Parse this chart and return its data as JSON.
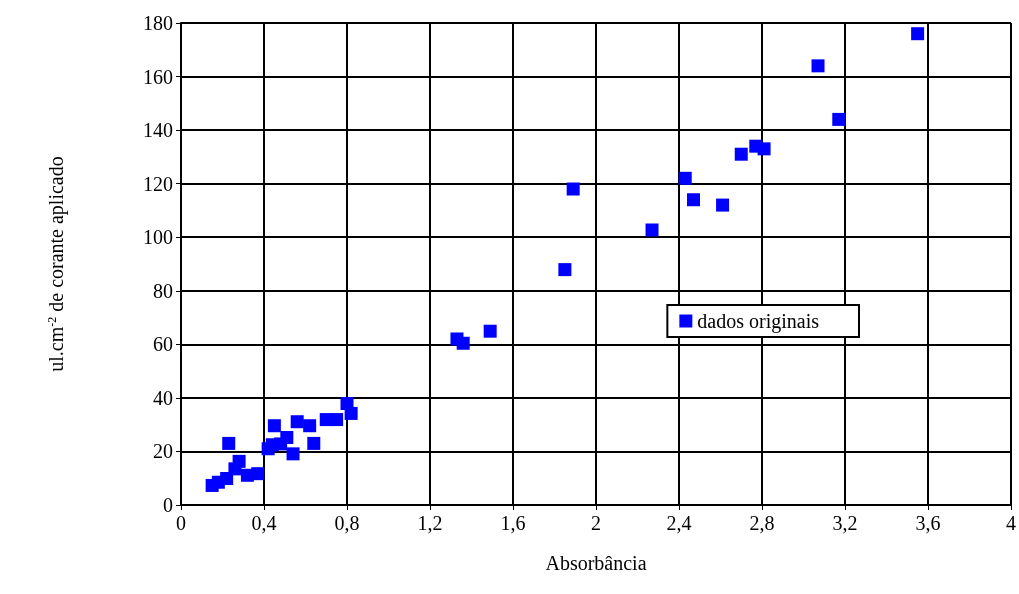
{
  "chart_data": {
    "type": "scatter",
    "xlabel": "Absorbância",
    "ylabel": "ul.cm$^{-2}$ de corante aplicado",
    "series": [
      {
        "name": "dados originais",
        "color": "#0000ff",
        "x": [
          0.15,
          0.18,
          0.22,
          0.23,
          0.26,
          0.28,
          0.32,
          0.37,
          0.39,
          0.41,
          0.42,
          0.44,
          0.45,
          0.48,
          0.51,
          0.54,
          0.56,
          0.62,
          0.64,
          0.7,
          0.75,
          0.8,
          0.82,
          1.33,
          1.36,
          1.49,
          1.85,
          1.89,
          2.27,
          2.43,
          2.47,
          2.61,
          2.7,
          2.77,
          2.81,
          3.07,
          3.17,
          3.55
        ],
        "values": [
          7.3,
          8.5,
          9.9,
          23,
          13.5,
          16.3,
          11.1,
          11.7,
          null,
          null,
          21,
          22.5,
          29.6,
          22.8,
          25.2,
          19.1,
          31.1,
          29.6,
          23,
          31.9,
          31.9,
          37.9,
          34.2,
          62,
          60.4,
          64.9,
          87.9,
          118,
          102.7,
          122,
          114,
          112,
          131,
          134,
          133,
          164,
          144,
          176
        ]
      }
    ],
    "xlim": [
      0,
      4
    ],
    "xticks": [
      0,
      {
        "value": 0.4,
        "label": "0,4"
      },
      {
        "value": 0.8,
        "label": "0,8"
      },
      {
        "value": 1.2,
        "label": "1,2"
      },
      {
        "value": 1.6,
        "label": "1,6"
      },
      2,
      {
        "value": 2.4,
        "label": "2,4"
      },
      {
        "value": 2.8,
        "label": "2,8"
      },
      {
        "value": 3.2,
        "label": "3,2"
      },
      {
        "value": 3.6,
        "label": "3,6"
      },
      4
    ],
    "ylim": [
      0,
      180
    ],
    "yticks": [
      0,
      20,
      40,
      60,
      80,
      100,
      120,
      140,
      160,
      180
    ],
    "grid": true,
    "legend": "right",
    "marker": "square"
  }
}
